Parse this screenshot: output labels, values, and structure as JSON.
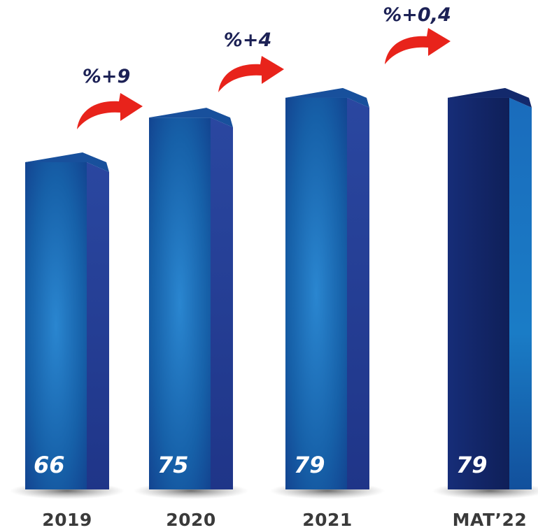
{
  "chart_data": {
    "type": "bar",
    "categories": [
      "2019",
      "2020",
      "2021",
      "MAT’22"
    ],
    "values": [
      66,
      75,
      79,
      79
    ],
    "value_labels": [
      "66",
      "75",
      "79",
      "79"
    ],
    "growth_labels": [
      "%+9",
      "%+4",
      "%+0,4"
    ],
    "title": "",
    "xlabel": "",
    "ylabel": "",
    "ylim": [
      0,
      95
    ],
    "grid": false,
    "legend": "none",
    "colors": {
      "bar_front_light": "#2a86d0",
      "bar_front": "#1660a8",
      "bar_front_dark": "#123f8c",
      "bar_side": "#253f97",
      "bar_top": "#1a5aa8",
      "highlight_front": "#162d78",
      "highlight_front_dark": "#0f1f58",
      "highlight_side": "#1661b0",
      "arrow": "#e8231b",
      "growth_text": "#1c2155",
      "category_text": "#3a3a3a"
    }
  }
}
